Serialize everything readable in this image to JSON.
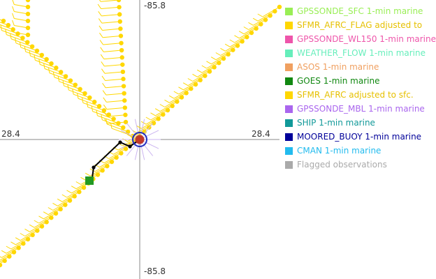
{
  "map": {
    "axis_labels": {
      "top": "-85.8",
      "bottom": "-85.8",
      "left": "28.4",
      "right": "28.4"
    },
    "observation_color": "#ffd700",
    "track_color": "#000000",
    "storm_center_color": "#c0392b",
    "storm_ring_color": "#1f2fbf",
    "goes_marker_color": "#229922"
  },
  "legend": {
    "items": [
      {
        "label": "GPSSONDE_SFC 1-min marine",
        "color": "#99ee55"
      },
      {
        "label": "SFMR_AFRC_FLAG adjusted to",
        "color": "#ffd700"
      },
      {
        "label": "GPSSONDE_WL150 1-min marine",
        "color": "#ee55aa"
      },
      {
        "label": "WEATHER_FLOW 1-min marine",
        "color": "#66eebb"
      },
      {
        "label": "ASOS 1-min marine",
        "color": "#f0a060"
      },
      {
        "label": "GOES 1-min marine",
        "color": "#118811"
      },
      {
        "label": "SFMR_AFRC adjusted to sfc.",
        "color": "#ffd700"
      },
      {
        "label": "GPSSONDE_MBL 1-min marine",
        "color": "#aa66ee"
      },
      {
        "label": "SHIP 1-min marine",
        "color": "#119999"
      },
      {
        "label": "MOORED_BUOY 1-min marine",
        "color": "#000099"
      },
      {
        "label": "CMAN 1-min marine",
        "color": "#22bbee"
      },
      {
        "label": "Flagged observations",
        "color": "#aaaaaa"
      }
    ]
  }
}
